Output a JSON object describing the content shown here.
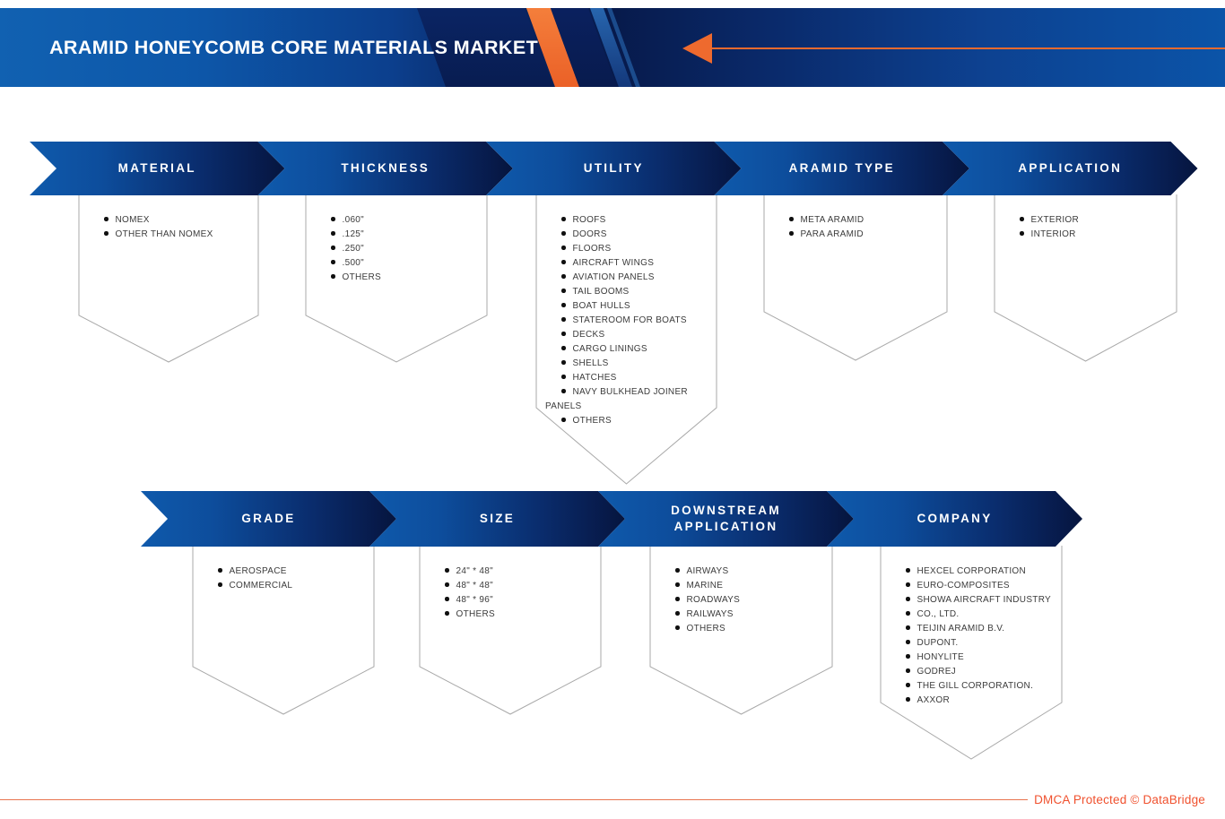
{
  "banner": {
    "title": "ARAMID HONEYCOMB CORE MATERIALS MARKET"
  },
  "rows": [
    {
      "segments": [
        {
          "label": "MATERIAL",
          "items": [
            "NOMEX",
            "OTHER THAN NOMEX"
          ]
        },
        {
          "label": "THICKNESS",
          "items": [
            ".060\"",
            ".125\"",
            ".250\"",
            ".500\"",
            "OTHERS"
          ]
        },
        {
          "label": "UTILITY",
          "items": [
            "ROOFS",
            "DOORS",
            "FLOORS",
            "AIRCRAFT WINGS",
            "AVIATION PANELS",
            "TAIL BOOMS",
            "BOAT HULLS",
            "STATEROOM FOR BOATS",
            "DECKS",
            "CARGO LININGS",
            "SHELLS",
            "HATCHES",
            "NAVY BULKHEAD JOINER PANELS",
            "OTHERS"
          ]
        },
        {
          "label": "ARAMID TYPE",
          "items": [
            "META ARAMID",
            "PARA ARAMID"
          ]
        },
        {
          "label": "APPLICATION",
          "items": [
            "EXTERIOR",
            "INTERIOR"
          ]
        }
      ]
    },
    {
      "segments": [
        {
          "label": "GRADE",
          "items": [
            "AEROSPACE",
            "COMMERCIAL"
          ]
        },
        {
          "label": "SIZE",
          "items": [
            "24\" * 48\"",
            "48\" * 48\"",
            "48\" * 96\"",
            "OTHERS"
          ]
        },
        {
          "label": "DOWNSTREAM\nAPPLICATION",
          "items": [
            "AIRWAYS",
            "MARINE",
            "ROADWAYS",
            "RAILWAYS",
            "OTHERS"
          ]
        },
        {
          "label": "COMPANY",
          "items": [
            "HEXCEL CORPORATION",
            "EURO-COMPOSITES",
            "SHOWA AIRCRAFT INDUSTRY",
            "CO., LTD.",
            "TEIJIN ARAMID B.V.",
            "DUPONT.",
            "HONYLITE",
            "GODREJ",
            "THE GILL CORPORATION.",
            "AXXOR"
          ]
        }
      ]
    }
  ],
  "footer": {
    "dmca": "DMCA Protected © DataBridge"
  },
  "colors": {
    "banner_blue": "#0d57a9",
    "banner_navy": "#071a4b",
    "accent_orange": "#ee6a2e",
    "arrow_gradient_start": "#0f5aac",
    "arrow_gradient_end": "#06153d",
    "pentagon_border": "#a9a9a9",
    "list_text": "#3b3b3b",
    "footer_orange": "#f0512e"
  }
}
